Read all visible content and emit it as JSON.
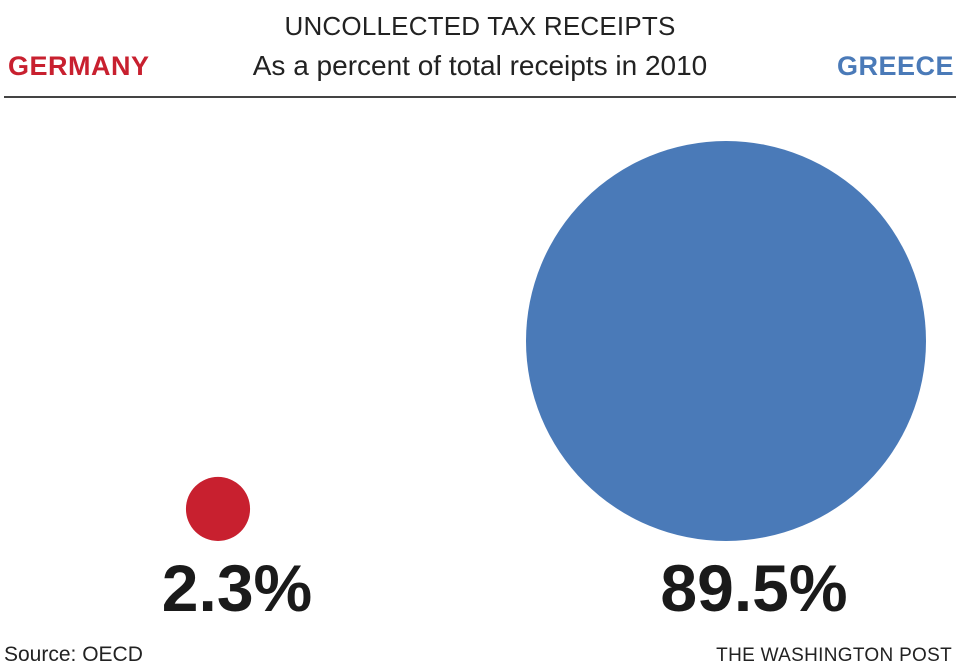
{
  "chart_data": {
    "type": "proportional-circles",
    "title": "UNCOLLECTED TAX RECEIPTS",
    "subtitle": "As a percent of total receipts in 2010",
    "categories": [
      "GERMANY",
      "GREECE"
    ],
    "values": [
      2.3,
      89.5
    ],
    "value_labels": [
      "2.3%",
      "89.5%"
    ],
    "unit": "%",
    "colors": [
      "#c8202f",
      "#4a7ab8"
    ]
  },
  "footer": {
    "source": "Source: OECD",
    "credit": "THE WASHINGTON POST"
  }
}
